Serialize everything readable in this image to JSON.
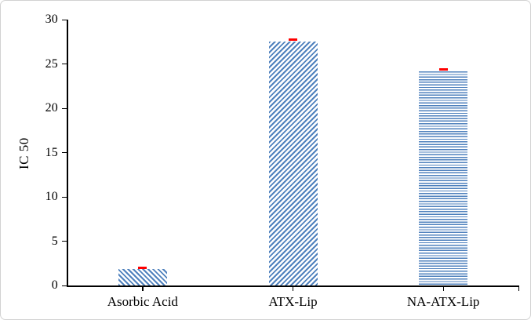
{
  "chart_data": {
    "type": "bar",
    "title": "",
    "xlabel": "",
    "ylabel": "IC 50",
    "categories": [
      "Asorbic Acid",
      "ATX-Lip",
      "NA-ATX-Lip"
    ],
    "values": [
      1.9,
      27.5,
      24.2
    ],
    "errors": [
      0.1,
      0.25,
      0.2
    ],
    "ylim": [
      0,
      30
    ],
    "yticks": [
      0,
      5,
      10,
      15,
      20,
      25,
      30
    ],
    "grid": false,
    "legend_position": "none",
    "bar_patterns": [
      "diagonal-down",
      "diagonal-up",
      "horizontal"
    ],
    "bar_color": "#4f81bd",
    "pattern_background": "#ffffff",
    "error_color": "#fe0000",
    "axis_color": "#000000",
    "frame_border_color": "#d2d2d2"
  }
}
